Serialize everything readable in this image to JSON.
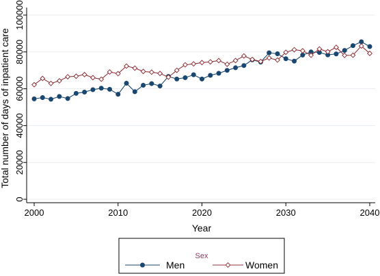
{
  "chart_data": {
    "type": "line",
    "xlabel": "Year",
    "ylabel": "Total number of days of inpatient care",
    "xlim": [
      2000,
      2040
    ],
    "ylim": [
      0,
      100000
    ],
    "x_ticks": [
      2000,
      2010,
      2020,
      2030,
      2040
    ],
    "y_ticks": [
      0,
      20000,
      40000,
      60000,
      80000,
      100000
    ],
    "y_tick_labels": [
      "0",
      "20000",
      "40000",
      "60000",
      "80000",
      "100000"
    ],
    "grid": "horizontal",
    "legend": {
      "title": "Sex",
      "placement": "bottom"
    },
    "x": [
      2000,
      2001,
      2002,
      2003,
      2004,
      2005,
      2006,
      2007,
      2008,
      2009,
      2010,
      2011,
      2012,
      2013,
      2014,
      2015,
      2016,
      2017,
      2018,
      2019,
      2020,
      2021,
      2022,
      2023,
      2024,
      2025,
      2026,
      2027,
      2028,
      2029,
      2030,
      2031,
      2032,
      2033,
      2034,
      2035,
      2036,
      2037,
      2038,
      2039,
      2040
    ],
    "series": [
      {
        "name": "Men",
        "color": "#1a476f",
        "marker": "circle",
        "values": [
          54500,
          55200,
          54300,
          55800,
          54700,
          57500,
          58200,
          59500,
          60300,
          59700,
          57000,
          63000,
          58400,
          61900,
          62800,
          61500,
          66700,
          65300,
          66000,
          67600,
          65300,
          67300,
          68400,
          70000,
          71400,
          72600,
          75700,
          74500,
          79500,
          79000,
          76300,
          75000,
          78300,
          80000,
          79700,
          78400,
          78900,
          80800,
          83400,
          85500,
          82900
        ]
      },
      {
        "name": "Women",
        "color": "#90353b",
        "marker": "diamond-hollow",
        "values": [
          62200,
          65600,
          62900,
          64300,
          66500,
          66800,
          67700,
          66000,
          65200,
          69100,
          68200,
          72300,
          71200,
          69400,
          69000,
          68300,
          66300,
          70000,
          73000,
          73500,
          74200,
          74600,
          75300,
          73300,
          75300,
          77800,
          75900,
          74800,
          76700,
          75600,
          79800,
          81200,
          80600,
          78200,
          81600,
          80100,
          82500,
          78100,
          78200,
          83200,
          79200
        ]
      }
    ]
  }
}
